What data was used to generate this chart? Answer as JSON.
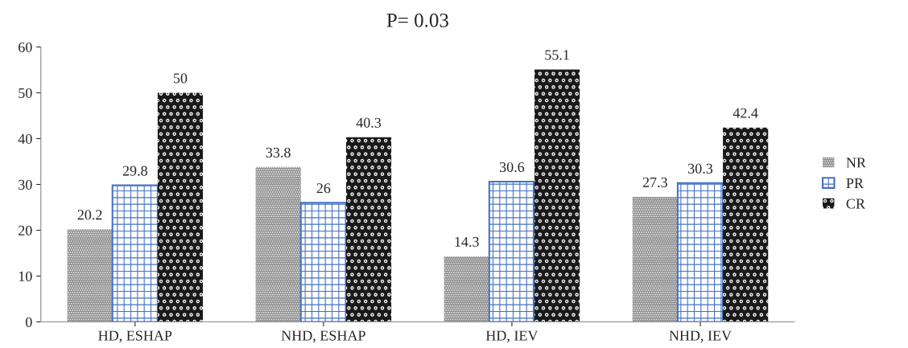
{
  "chart_data": {
    "type": "bar",
    "title": "P= 0.03",
    "categories": [
      "HD, ESHAP",
      "NHD, ESHAP",
      "HD, IEV",
      "NHD, IEV"
    ],
    "series": [
      {
        "name": "NR",
        "color": "#8c8c8c",
        "values": [
          20.2,
          33.8,
          14.3,
          27.3
        ]
      },
      {
        "name": "PR",
        "color": "#4472c4",
        "values": [
          29.8,
          26,
          30.6,
          30.3
        ]
      },
      {
        "name": "CR",
        "color": "#1a1a1a",
        "values": [
          50,
          40.3,
          55.1,
          42.4
        ]
      }
    ],
    "ylim": [
      0,
      60
    ],
    "yticks": [
      0,
      10,
      20,
      30,
      40,
      50,
      60
    ],
    "data_labels": true,
    "legend": "right",
    "grid": false
  }
}
